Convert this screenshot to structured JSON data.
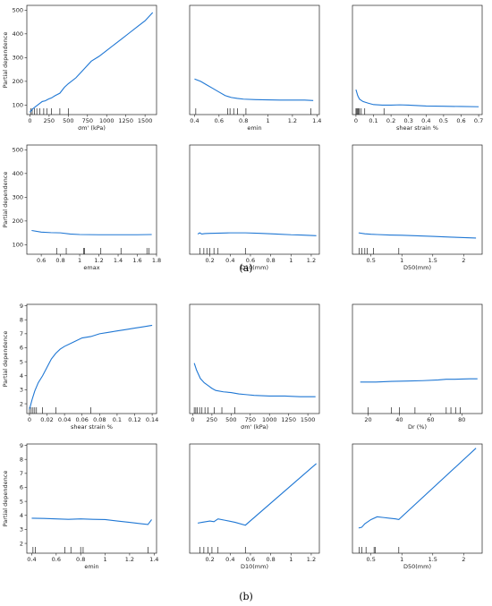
{
  "figure": {
    "label_a": "(a)",
    "label_b": "(b)"
  },
  "chart_data": [
    {
      "type": "line",
      "group": "a",
      "xlabel": "σm' (kPa)",
      "ylabel": "Partial dependence",
      "xlim": [
        -40,
        1650
      ],
      "ylim": [
        60,
        520
      ],
      "xticks": [
        0,
        250,
        500,
        750,
        1000,
        1250,
        1500
      ],
      "yticks": [
        100,
        200,
        300,
        400,
        500
      ],
      "x": [
        0,
        40,
        80,
        120,
        160,
        200,
        240,
        280,
        330,
        390,
        450,
        500,
        600,
        700,
        800,
        900,
        1000,
        1100,
        1200,
        1300,
        1400,
        1500,
        1600
      ],
      "y": [
        70,
        85,
        95,
        105,
        115,
        118,
        125,
        130,
        140,
        150,
        175,
        190,
        215,
        250,
        285,
        305,
        330,
        355,
        380,
        405,
        430,
        455,
        490
      ],
      "rug": [
        10,
        30,
        60,
        90,
        130,
        180,
        220,
        280,
        390,
        500
      ]
    },
    {
      "type": "line",
      "group": "a",
      "xlabel": "emin",
      "ylabel": "",
      "xlim": [
        0.36,
        1.42
      ],
      "ylim": [
        60,
        520
      ],
      "xticks": [
        0.4,
        0.6,
        0.8,
        1.0,
        1.2,
        1.4
      ],
      "yticks": [],
      "x": [
        0.4,
        0.45,
        0.5,
        0.55,
        0.6,
        0.65,
        0.7,
        0.75,
        0.8,
        0.9,
        1.0,
        1.1,
        1.2,
        1.3,
        1.37
      ],
      "y": [
        210,
        200,
        185,
        170,
        155,
        140,
        132,
        128,
        125,
        123,
        122,
        121,
        121,
        121,
        119
      ],
      "rug": [
        0.41,
        0.67,
        0.69,
        0.72,
        0.75,
        0.82,
        1.35
      ]
    },
    {
      "type": "line",
      "group": "a",
      "xlabel": "shear strain %",
      "ylabel": "",
      "xlim": [
        -0.02,
        0.72
      ],
      "ylim": [
        60,
        520
      ],
      "xticks": [
        0.0,
        0.1,
        0.2,
        0.3,
        0.4,
        0.5,
        0.6,
        0.7
      ],
      "yticks": [],
      "x": [
        0.0,
        0.01,
        0.02,
        0.04,
        0.07,
        0.1,
        0.15,
        0.2,
        0.25,
        0.3,
        0.35,
        0.4,
        0.5,
        0.6,
        0.7
      ],
      "y": [
        165,
        140,
        125,
        115,
        108,
        102,
        100,
        100,
        101,
        100,
        98,
        96,
        95,
        94,
        93
      ],
      "rug": [
        0.0,
        0.005,
        0.01,
        0.015,
        0.02,
        0.03,
        0.05,
        0.16
      ]
    },
    {
      "type": "line",
      "group": "a",
      "xlabel": "emax",
      "ylabel": "Partial dependence",
      "xlim": [
        0.45,
        1.8
      ],
      "ylim": [
        60,
        520
      ],
      "xticks": [
        0.6,
        0.8,
        1.0,
        1.2,
        1.4,
        1.6,
        1.8
      ],
      "yticks": [
        100,
        200,
        300,
        400,
        500
      ],
      "x": [
        0.5,
        0.6,
        0.7,
        0.8,
        0.9,
        1.0,
        1.2,
        1.4,
        1.6,
        1.75
      ],
      "y": [
        160,
        153,
        151,
        150,
        145,
        143,
        142,
        142,
        142,
        143
      ],
      "rug": [
        0.76,
        0.86,
        1.04,
        1.05,
        1.22,
        1.43,
        1.7,
        1.72
      ]
    },
    {
      "type": "line",
      "group": "a",
      "xlabel": "D10(mm)",
      "ylabel": "",
      "xlim": [
        0.0,
        1.28
      ],
      "ylim": [
        60,
        520
      ],
      "xticks": [
        0.2,
        0.4,
        0.6,
        0.8,
        1.0,
        1.2
      ],
      "yticks": [],
      "x": [
        0.08,
        0.1,
        0.12,
        0.15,
        0.2,
        0.3,
        0.4,
        0.55,
        0.7,
        0.85,
        1.0,
        1.1,
        1.25
      ],
      "y": [
        145,
        150,
        145,
        147,
        148,
        149,
        150,
        150,
        148,
        145,
        142,
        141,
        138
      ],
      "rug": [
        0.1,
        0.14,
        0.17,
        0.2,
        0.24,
        0.28,
        0.55
      ]
    },
    {
      "type": "line",
      "group": "a",
      "xlabel": "D50(mm)",
      "ylabel": "",
      "xlim": [
        0.2,
        2.3
      ],
      "ylim": [
        60,
        520
      ],
      "xticks": [
        0.5,
        1.0,
        1.5,
        2.0
      ],
      "yticks": [],
      "x": [
        0.3,
        0.4,
        0.5,
        0.6,
        0.8,
        1.0,
        1.2,
        1.5,
        1.8,
        2.0,
        2.2
      ],
      "y": [
        150,
        146,
        144,
        143,
        141,
        140,
        138,
        135,
        132,
        130,
        128
      ],
      "rug": [
        0.31,
        0.35,
        0.4,
        0.44,
        0.54,
        0.95
      ]
    },
    {
      "type": "line",
      "group": "b",
      "xlabel": "shear strain %",
      "ylabel": "Partial dependence",
      "xlim": [
        -0.003,
        0.145
      ],
      "ylim": [
        1.3,
        9.1
      ],
      "xticks": [
        0.0,
        0.02,
        0.04,
        0.06,
        0.08,
        0.1,
        0.12,
        0.14
      ],
      "yticks": [
        2,
        3,
        4,
        5,
        6,
        7,
        8,
        9
      ],
      "x": [
        0.0,
        0.003,
        0.006,
        0.01,
        0.015,
        0.02,
        0.025,
        0.03,
        0.035,
        0.04,
        0.05,
        0.06,
        0.07,
        0.08,
        0.09,
        0.1,
        0.11,
        0.12,
        0.13,
        0.14
      ],
      "y": [
        1.6,
        2.3,
        2.9,
        3.5,
        4.0,
        4.6,
        5.2,
        5.6,
        5.9,
        6.1,
        6.4,
        6.7,
        6.8,
        7.0,
        7.1,
        7.2,
        7.3,
        7.4,
        7.5,
        7.6
      ],
      "rug": [
        0.0,
        0.002,
        0.004,
        0.006,
        0.008,
        0.015,
        0.03,
        0.07
      ]
    },
    {
      "type": "line",
      "group": "b",
      "xlabel": "σm' (kPa)",
      "ylabel": "",
      "xlim": [
        -40,
        1650
      ],
      "ylim": [
        1.3,
        9.1
      ],
      "xticks": [
        0,
        250,
        500,
        750,
        1000,
        1250,
        1500
      ],
      "yticks": [],
      "x": [
        20,
        50,
        100,
        150,
        200,
        250,
        300,
        400,
        500,
        600,
        700,
        800,
        1000,
        1200,
        1400,
        1600
      ],
      "y": [
        4.9,
        4.4,
        3.8,
        3.5,
        3.3,
        3.1,
        2.95,
        2.85,
        2.8,
        2.7,
        2.65,
        2.6,
        2.55,
        2.55,
        2.5,
        2.5
      ],
      "rug": [
        20,
        40,
        60,
        90,
        120,
        160,
        200,
        280,
        380,
        550
      ]
    },
    {
      "type": "line",
      "group": "b",
      "xlabel": "Dr (%)",
      "ylabel": "",
      "xlim": [
        10,
        93
      ],
      "ylim": [
        1.3,
        9.1
      ],
      "xticks": [
        20,
        40,
        60,
        80
      ],
      "yticks": [],
      "x": [
        15,
        25,
        35,
        45,
        55,
        65,
        70,
        75,
        85,
        90
      ],
      "y": [
        3.55,
        3.55,
        3.6,
        3.62,
        3.65,
        3.7,
        3.75,
        3.75,
        3.78,
        3.78
      ],
      "rug": [
        20,
        35,
        40,
        50,
        70,
        73,
        76,
        79
      ]
    },
    {
      "type": "line",
      "group": "b",
      "xlabel": "emin",
      "ylabel": "Partial dependence",
      "xlim": [
        0.36,
        1.42
      ],
      "ylim": [
        1.3,
        9.1
      ],
      "xticks": [
        0.4,
        0.6,
        0.8,
        1.0,
        1.2,
        1.4
      ],
      "yticks": [
        2,
        3,
        4,
        5,
        6,
        7,
        8,
        9
      ],
      "x": [
        0.4,
        0.5,
        0.6,
        0.7,
        0.8,
        0.9,
        1.0,
        1.1,
        1.2,
        1.3,
        1.35,
        1.38
      ],
      "y": [
        3.8,
        3.78,
        3.75,
        3.72,
        3.75,
        3.72,
        3.7,
        3.6,
        3.5,
        3.4,
        3.35,
        3.7
      ],
      "rug": [
        0.41,
        0.43,
        0.67,
        0.72,
        0.8,
        0.82,
        1.35
      ]
    },
    {
      "type": "line",
      "group": "b",
      "xlabel": "D10(mm)",
      "ylabel": "",
      "xlim": [
        0.0,
        1.28
      ],
      "ylim": [
        1.3,
        9.1
      ],
      "xticks": [
        0.2,
        0.4,
        0.6,
        0.8,
        1.0,
        1.2
      ],
      "yticks": [],
      "x": [
        0.08,
        0.12,
        0.16,
        0.2,
        0.24,
        0.28,
        0.35,
        0.45,
        0.55,
        1.25
      ],
      "y": [
        3.45,
        3.5,
        3.55,
        3.6,
        3.55,
        3.75,
        3.65,
        3.5,
        3.3,
        7.7
      ],
      "rug": [
        0.1,
        0.14,
        0.18,
        0.22,
        0.28,
        0.55
      ]
    },
    {
      "type": "line",
      "group": "b",
      "xlabel": "D50(mm)",
      "ylabel": "",
      "xlim": [
        0.2,
        2.3
      ],
      "ylim": [
        1.3,
        9.1
      ],
      "xticks": [
        0.5,
        1.0,
        1.5,
        2.0
      ],
      "yticks": [],
      "x": [
        0.3,
        0.35,
        0.4,
        0.5,
        0.6,
        0.7,
        0.8,
        0.9,
        0.95,
        2.2
      ],
      "y": [
        3.1,
        3.15,
        3.4,
        3.7,
        3.9,
        3.85,
        3.8,
        3.75,
        3.7,
        8.8
      ],
      "rug": [
        0.31,
        0.35,
        0.42,
        0.55,
        0.57,
        0.95
      ]
    }
  ]
}
